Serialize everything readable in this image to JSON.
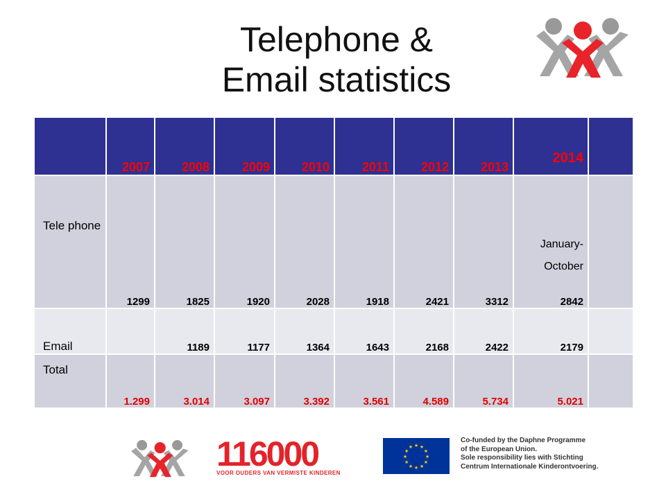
{
  "title": {
    "line1": "Telephone &",
    "line2": "Email statistics"
  },
  "table": {
    "years": [
      "2007",
      "2008",
      "2009",
      "2010",
      "2011",
      "2012",
      "2013",
      "2014"
    ],
    "rows": [
      {
        "label": "Tele phone",
        "values": [
          "1299",
          "1825",
          "1920",
          "2028",
          "1918",
          "2421",
          "3312",
          "2842"
        ],
        "note_2014": "January- October"
      },
      {
        "label": "Email",
        "values": [
          "",
          "1189",
          "1177",
          "1364",
          "1643",
          "2168",
          "2422",
          "2179"
        ]
      },
      {
        "label": "Total",
        "values": [
          "1.299",
          "3.014",
          "3.097",
          "3.392",
          "3.561",
          "4.589",
          "5.734",
          "5.021"
        ]
      }
    ]
  },
  "footer": {
    "brand_number": "116000",
    "brand_tagline": "VOOR OUDERS VAN VERMISTE KINDEREN",
    "eu_text": [
      "Co-funded by the Daphne Programme",
      "of the European Union.",
      "Sole responsibility lies with Stichting",
      "Centrum Internationale Kinderontvoering."
    ]
  },
  "colors": {
    "header_bg": "#2e3192",
    "accent_red": "#ff0000",
    "row_dark": "#d0d1dc",
    "row_light": "#e8e9ef",
    "eu_blue": "#003399"
  }
}
